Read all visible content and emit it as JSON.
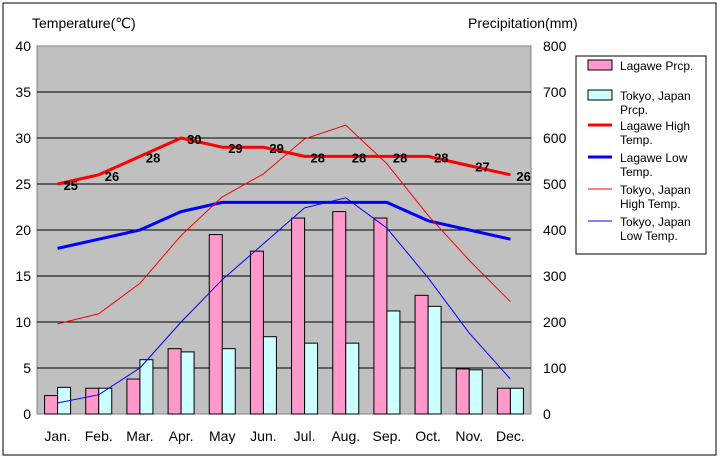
{
  "chart_data": {
    "type": "bar",
    "left_axis_title": "Temperature(℃)",
    "right_axis_title": "Precipitation(mm)",
    "categories": [
      "Jan.",
      "Feb.",
      "Mar.",
      "Apr.",
      "May",
      "Jun.",
      "Jul.",
      "Aug.",
      "Sep.",
      "Oct.",
      "Nov.",
      "Dec."
    ],
    "temp_ylim": [
      0,
      40
    ],
    "temp_ticks": [
      "0",
      "5",
      "10",
      "15",
      "20",
      "25",
      "30",
      "35",
      "40"
    ],
    "prcp_ylim": [
      0,
      800
    ],
    "prcp_ticks": [
      "0",
      "100",
      "200",
      "300",
      "400",
      "500",
      "600",
      "700",
      "800"
    ],
    "grid": true,
    "legend_position": "right",
    "bar_series": [
      {
        "name": "Lagawe Prcp.",
        "color": "#ff99cc",
        "values": [
          40,
          56,
          76,
          142,
          390,
          354,
          426,
          440,
          426,
          258,
          98,
          56
        ]
      },
      {
        "name": "Tokyo, Japan Prcp.",
        "color": "#ccffff",
        "values": [
          58,
          56,
          118,
          135,
          142,
          168,
          154,
          154,
          224,
          234,
          96,
          56
        ]
      }
    ],
    "line_series": [
      {
        "name": "Lagawe High Temp.",
        "color": "#ff0000",
        "width": "thick",
        "values": [
          25,
          26,
          28,
          30,
          29,
          29,
          28,
          28,
          28,
          28,
          27,
          26
        ]
      },
      {
        "name": "Lagawe Low Temp.",
        "color": "#0000ff",
        "width": "thick",
        "values": [
          18,
          19,
          20,
          22,
          23,
          23,
          23,
          23,
          23,
          21,
          20,
          19
        ]
      },
      {
        "name": "Tokyo, Japan High Temp.",
        "color": "#ff0000",
        "width": "thin",
        "values": [
          9.8,
          10.9,
          14.2,
          19.4,
          23.6,
          26.1,
          29.9,
          31.4,
          27.2,
          21.6,
          16.7,
          12.2
        ]
      },
      {
        "name": "Tokyo, Japan Low Temp.",
        "color": "#0000ff",
        "width": "thin",
        "values": [
          1.2,
          2.1,
          5.0,
          10.0,
          14.6,
          18.5,
          22.4,
          23.5,
          20.2,
          14.8,
          8.8,
          3.8
        ]
      }
    ],
    "data_labels": [
      "25",
      "26",
      "28",
      "30",
      "29",
      "29",
      "28",
      "28",
      "28",
      "28",
      "27",
      "26"
    ]
  }
}
